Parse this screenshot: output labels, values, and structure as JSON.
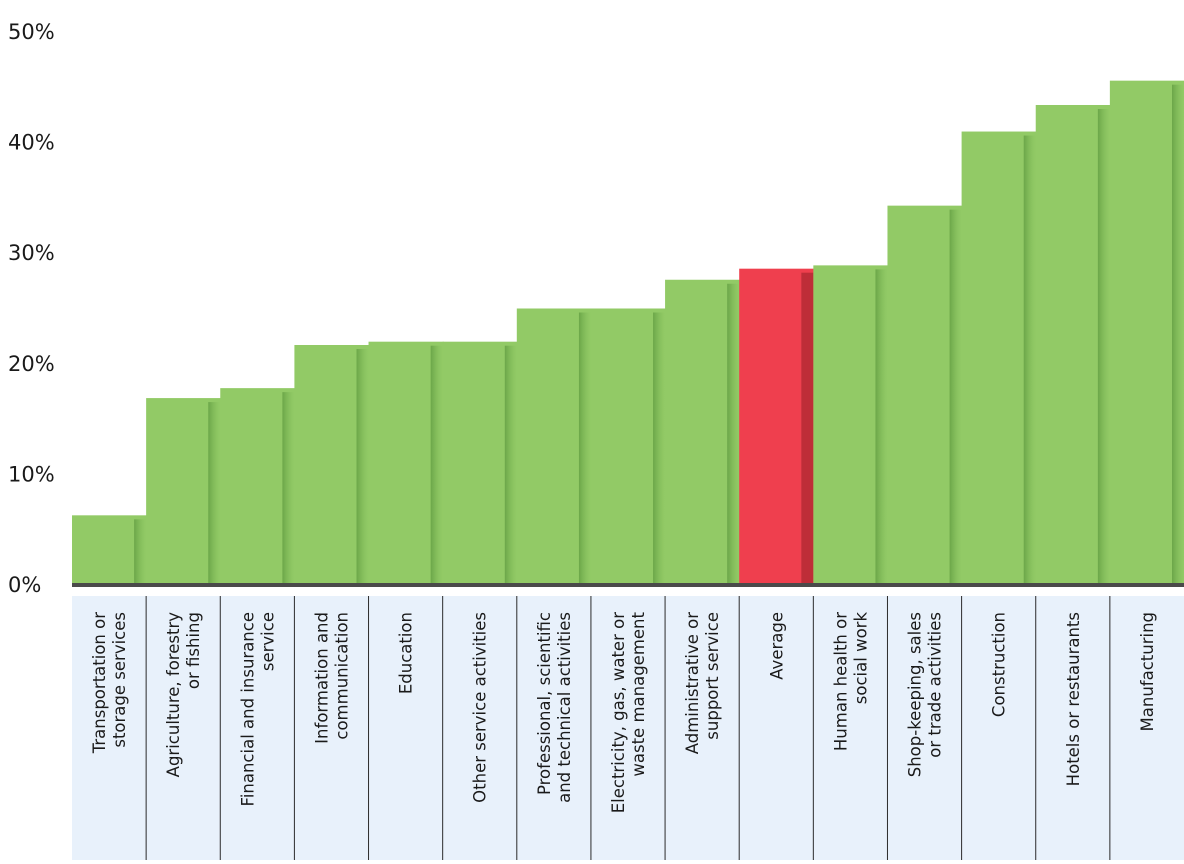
{
  "colors": {
    "bar": "#92ca66",
    "highlight": "#ef3f4e",
    "label_panel": "#e8f1fb",
    "baseline": "#4a4a4a"
  },
  "chart_data": {
    "type": "bar",
    "title": "",
    "xlabel": "",
    "ylabel": "",
    "ylim": [
      0,
      50
    ],
    "yticks": [
      "0%",
      "10%",
      "20%",
      "30%",
      "40%",
      "50%"
    ],
    "grid": false,
    "legend": "none",
    "highlight_category": "Average",
    "categories": [
      [
        "Transportation or",
        "storage services"
      ],
      [
        "Agriculture, forestry",
        "or fishing"
      ],
      [
        "Financial and insurance",
        "service"
      ],
      [
        "Information and",
        "communication"
      ],
      [
        "Education"
      ],
      [
        "Other service activities"
      ],
      [
        "Professional, scientific",
        "and technical activities"
      ],
      [
        "Electricity, gas, water or",
        "waste management"
      ],
      [
        "Administrative or",
        "support service"
      ],
      [
        "Average"
      ],
      [
        "Human health or",
        "social work"
      ],
      [
        "Shop-keeping, sales",
        "or trade activities"
      ],
      [
        "Construction"
      ],
      [
        "Hotels or restaurants"
      ],
      [
        "Manufacturing"
      ]
    ],
    "values": [
      6.3,
      16.9,
      17.8,
      21.7,
      22.0,
      22.0,
      25.0,
      25.0,
      27.6,
      28.6,
      28.9,
      34.3,
      41.0,
      43.4,
      45.6
    ]
  }
}
